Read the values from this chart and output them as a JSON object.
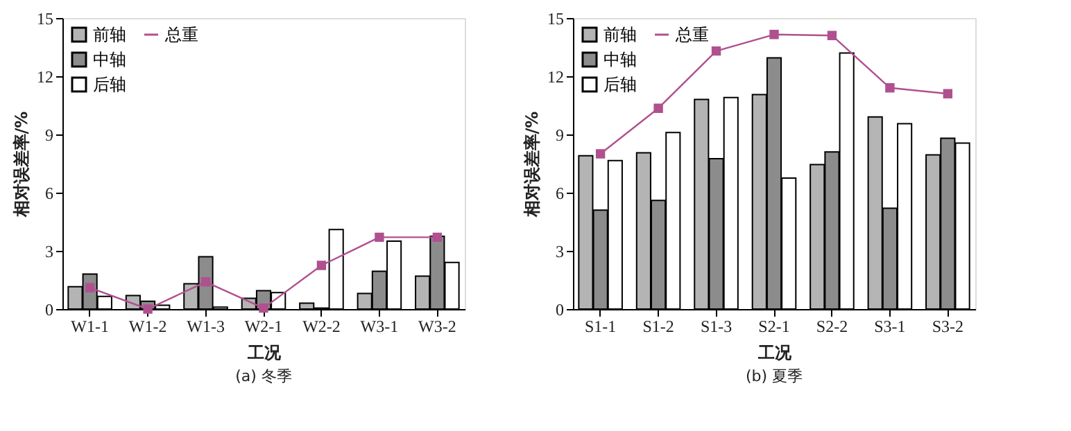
{
  "chart_data": [
    {
      "type": "bar",
      "title": "(a)  冬季",
      "xlabel": "工况",
      "ylabel": "相对误差率/%",
      "categories": [
        "W1-1",
        "W1-2",
        "W1-3",
        "W2-1",
        "W2-2",
        "W3-1",
        "W3-2"
      ],
      "ylim": [
        0,
        15
      ],
      "yticks": [
        0,
        3,
        6,
        9,
        12,
        15
      ],
      "grid": false,
      "legend": "top left",
      "series": [
        {
          "name": "前轴",
          "color": "#b4b4b4",
          "values": [
            1.15,
            0.7,
            1.3,
            0.55,
            0.3,
            0.8,
            1.7
          ]
        },
        {
          "name": "中轴",
          "color": "#8c8c8c",
          "values": [
            1.8,
            0.4,
            2.7,
            0.95,
            0.05,
            1.95,
            3.75
          ]
        },
        {
          "name": "后轴",
          "color": "#ffffff",
          "values": [
            0.65,
            0.2,
            0.1,
            0.85,
            4.1,
            3.5,
            2.4
          ]
        },
        {
          "name": "总重",
          "type": "line",
          "color": "#b0508f",
          "marker": "square",
          "line_style": "solid",
          "values": [
            1.1,
            0.0,
            1.4,
            0.05,
            2.25,
            3.7,
            3.7
          ]
        }
      ]
    },
    {
      "type": "bar",
      "title": "(b)  夏季",
      "xlabel": "工况",
      "ylabel": "相对误差率/%",
      "categories": [
        "S1-1",
        "S1-2",
        "S1-3",
        "S2-1",
        "S2-2",
        "S3-1",
        "S3-2"
      ],
      "ylim": [
        0,
        15
      ],
      "yticks": [
        0,
        3,
        6,
        9,
        12,
        15
      ],
      "grid": false,
      "legend": "top left",
      "series": [
        {
          "name": "前轴",
          "color": "#b4b4b4",
          "values": [
            7.9,
            8.05,
            10.8,
            11.05,
            7.45,
            9.9,
            7.95
          ]
        },
        {
          "name": "中轴",
          "color": "#8c8c8c",
          "values": [
            5.1,
            5.6,
            7.75,
            12.95,
            8.1,
            5.2,
            8.8
          ]
        },
        {
          "name": "后轴",
          "color": "#ffffff",
          "values": [
            7.65,
            9.1,
            10.9,
            6.75,
            13.2,
            9.55,
            8.55
          ]
        },
        {
          "name": "总重",
          "type": "line",
          "color": "#b0508f",
          "marker": "square",
          "line_style": "solid",
          "values": [
            8.0,
            10.35,
            13.3,
            14.15,
            14.1,
            11.4,
            11.1
          ]
        }
      ]
    }
  ]
}
